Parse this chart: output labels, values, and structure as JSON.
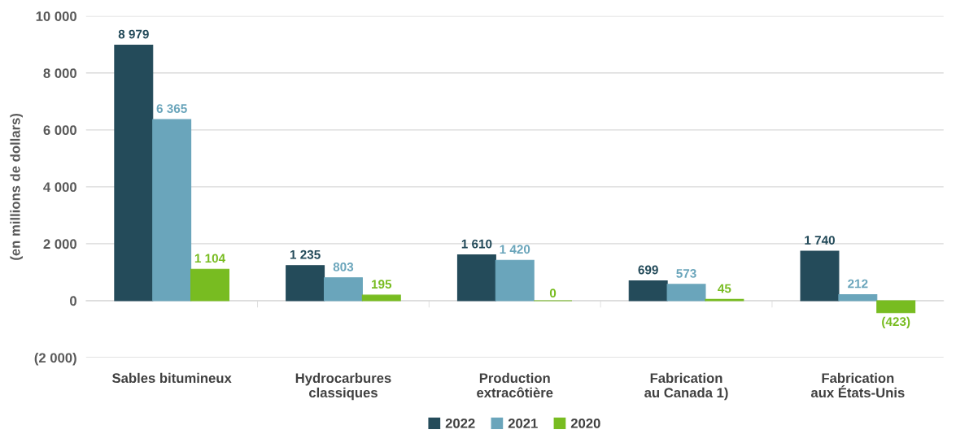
{
  "chart_data": {
    "type": "bar",
    "ylabel": "(en millions de dollars)",
    "categories": [
      "Sables bitumineux",
      "Hydrocarbures\nclassiques",
      "Production\nextracôtière",
      "Fabrication\nau Canada 1)",
      "Fabrication\naux États-Unis"
    ],
    "series": [
      {
        "name": "2022",
        "color": "#244b5a",
        "values": [
          8979,
          1235,
          1610,
          699,
          1740
        ],
        "value_labels": [
          "8 979",
          "1 235",
          "1 610",
          "699",
          "1 740"
        ]
      },
      {
        "name": "2021",
        "color": "#6aa5bb",
        "values": [
          6365,
          803,
          1420,
          573,
          212
        ],
        "value_labels": [
          "6 365",
          "803",
          "1 420",
          "573",
          "212"
        ]
      },
      {
        "name": "2020",
        "color": "#78bc21",
        "values": [
          1104,
          195,
          0,
          45,
          -423
        ],
        "value_labels": [
          "1 104",
          "195",
          "0",
          "45",
          "(423)"
        ]
      }
    ],
    "ylim": [
      -2000,
      10000
    ],
    "yticks": [
      {
        "value": -2000,
        "label": "(2 000)"
      },
      0,
      {
        "value": 2000,
        "label": "2 000"
      },
      {
        "value": 4000,
        "label": "4 000"
      },
      {
        "value": 6000,
        "label": "6 000"
      },
      {
        "value": 8000,
        "label": "8 000"
      },
      {
        "value": 10000,
        "label": "10 000"
      }
    ],
    "grid": "y",
    "legend": "bottom"
  }
}
